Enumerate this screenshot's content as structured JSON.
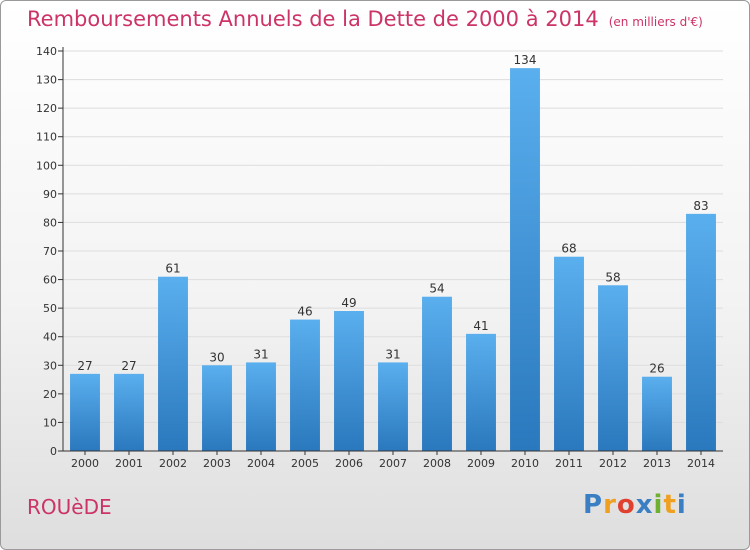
{
  "header": {
    "title": "Remboursements Annuels de la Dette de 2000 à 2014",
    "subtitle": "(en milliers d'€)"
  },
  "location": {
    "name": "ROUèDE"
  },
  "logo": {
    "text": "Proxiti",
    "letters": [
      {
        "ch": "P",
        "color": "#3a7fc4"
      },
      {
        "ch": "r",
        "color": "#f0a020"
      },
      {
        "ch": "o",
        "color": "#e04030"
      },
      {
        "ch": "x",
        "color": "#3a7fc4"
      },
      {
        "ch": "i",
        "color": "#70b030"
      },
      {
        "ch": "t",
        "color": "#f0a020"
      },
      {
        "ch": "i",
        "color": "#3a7fc4"
      }
    ]
  },
  "colors": {
    "accent": "#cc3366",
    "bar_light": "#5aafee",
    "bar_dark": "#2a78bd",
    "axis": "#333333",
    "grid": "#dddddd"
  },
  "chart_data": {
    "type": "bar",
    "title": "Remboursements Annuels de la Dette de 2000 à 2014",
    "subtitle": "(en milliers d'€)",
    "xlabel": "",
    "ylabel": "",
    "categories": [
      "2000",
      "2001",
      "2002",
      "2003",
      "2004",
      "2005",
      "2006",
      "2007",
      "2008",
      "2009",
      "2010",
      "2011",
      "2012",
      "2013",
      "2014"
    ],
    "values": [
      27,
      27,
      61,
      30,
      31,
      46,
      49,
      31,
      54,
      41,
      134,
      68,
      58,
      26,
      83
    ],
    "ylim": [
      0,
      140
    ],
    "yticks": [
      0,
      10,
      20,
      30,
      40,
      50,
      60,
      70,
      80,
      90,
      100,
      110,
      120,
      130,
      140
    ],
    "grid": true,
    "data_labels": true,
    "legend": "none"
  }
}
